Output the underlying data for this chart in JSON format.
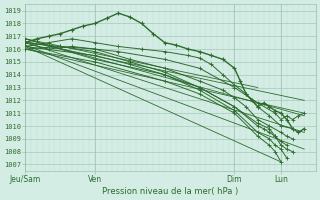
{
  "xlabel": "Pression niveau de la mer( hPa )",
  "bg_color": "#d4ede4",
  "grid_color_major": "#9abfb0",
  "grid_color_minor": "#b8d8cc",
  "line_color": "#2d6b2d",
  "ylim": [
    1006.5,
    1019.5
  ],
  "yticks": [
    1007,
    1008,
    1009,
    1010,
    1011,
    1012,
    1013,
    1014,
    1015,
    1016,
    1017,
    1018,
    1019
  ],
  "xtick_labels": [
    "Jeu/Sam",
    "Ven",
    "Dim",
    "Lun"
  ],
  "xtick_positions": [
    0.0,
    24.0,
    72.0,
    88.0
  ],
  "xmin": 0.0,
  "xmax": 100.0,
  "note": "x units are hours from Jeu. Jeu/Sam~0, Ven~24h, Dim~72h, Lun~88h, end~96h",
  "straight_lines": [
    {
      "x": [
        0,
        96
      ],
      "y": [
        1016.8,
        1010.8
      ]
    },
    {
      "x": [
        0,
        96
      ],
      "y": [
        1016.5,
        1009.5
      ]
    },
    {
      "x": [
        0,
        96
      ],
      "y": [
        1016.3,
        1008.2
      ]
    },
    {
      "x": [
        0,
        88
      ],
      "y": [
        1016.2,
        1007.2
      ]
    },
    {
      "x": [
        0,
        96
      ],
      "y": [
        1016.0,
        1011.0
      ]
    },
    {
      "x": [
        0,
        80
      ],
      "y": [
        1016.8,
        1013.0
      ]
    },
    {
      "x": [
        0,
        96
      ],
      "y": [
        1016.6,
        1012.0
      ]
    }
  ],
  "noisy_line": {
    "x": [
      0,
      4,
      8,
      12,
      16,
      20,
      24,
      28,
      32,
      36,
      40,
      44,
      48,
      52,
      56,
      60,
      64,
      68,
      72,
      74,
      76,
      78,
      80,
      82,
      84,
      86,
      88,
      90,
      92,
      94,
      96
    ],
    "y": [
      1016.5,
      1016.8,
      1017.0,
      1017.2,
      1017.5,
      1017.8,
      1018.0,
      1018.4,
      1018.8,
      1018.5,
      1018.0,
      1017.2,
      1016.5,
      1016.3,
      1016.0,
      1015.8,
      1015.5,
      1015.2,
      1014.5,
      1013.5,
      1012.5,
      1012.0,
      1011.5,
      1011.8,
      1011.5,
      1011.2,
      1011.0,
      1010.5,
      1009.8,
      1009.5,
      1009.8
    ]
  },
  "jagged_lines": [
    {
      "x": [
        0,
        8,
        16,
        24,
        32,
        40,
        48,
        56,
        60,
        64,
        68,
        72,
        76,
        80,
        84,
        88,
        92
      ],
      "y": [
        1016.2,
        1016.5,
        1016.8,
        1016.5,
        1016.2,
        1016.0,
        1015.8,
        1015.5,
        1015.3,
        1014.8,
        1014.0,
        1013.2,
        1012.5,
        1011.5,
        1010.8,
        1010.0,
        1009.8
      ]
    },
    {
      "x": [
        0,
        12,
        24,
        36,
        48,
        60,
        68,
        72,
        76,
        80,
        84,
        88,
        90,
        92
      ],
      "y": [
        1016.0,
        1016.2,
        1016.0,
        1015.2,
        1014.5,
        1013.5,
        1012.8,
        1012.2,
        1011.5,
        1010.5,
        1010.0,
        1009.5,
        1009.2,
        1009.0
      ]
    },
    {
      "x": [
        0,
        8,
        16,
        24,
        32,
        48,
        60,
        72,
        80,
        86,
        88,
        90,
        92,
        94,
        96
      ],
      "y": [
        1016.5,
        1016.0,
        1016.2,
        1016.0,
        1015.8,
        1015.2,
        1014.5,
        1013.0,
        1011.8,
        1011.0,
        1010.5,
        1010.8,
        1010.5,
        1010.8,
        1011.0
      ]
    },
    {
      "x": [
        0,
        24,
        48,
        60,
        72,
        80,
        84,
        86,
        88,
        90,
        92
      ],
      "y": [
        1016.8,
        1015.2,
        1014.0,
        1013.0,
        1011.5,
        1010.2,
        1009.8,
        1009.2,
        1008.5,
        1008.2,
        1008.0
      ]
    },
    {
      "x": [
        0,
        12,
        24,
        36,
        48,
        60,
        72,
        80,
        82,
        84,
        86,
        88,
        90
      ],
      "y": [
        1016.5,
        1016.2,
        1015.8,
        1015.0,
        1014.2,
        1013.0,
        1011.5,
        1010.0,
        1009.8,
        1009.5,
        1009.2,
        1008.8,
        1008.5
      ]
    },
    {
      "x": [
        0,
        24,
        36,
        48,
        60,
        72,
        80,
        84,
        86,
        88,
        90
      ],
      "y": [
        1016.2,
        1015.5,
        1014.8,
        1014.0,
        1012.8,
        1011.2,
        1009.5,
        1009.0,
        1008.5,
        1008.2,
        1007.5
      ]
    },
    {
      "x": [
        0,
        24,
        48,
        60,
        72,
        80,
        84,
        86,
        88
      ],
      "y": [
        1016.0,
        1015.0,
        1013.5,
        1012.5,
        1011.0,
        1009.2,
        1008.5,
        1008.0,
        1007.2
      ]
    }
  ]
}
